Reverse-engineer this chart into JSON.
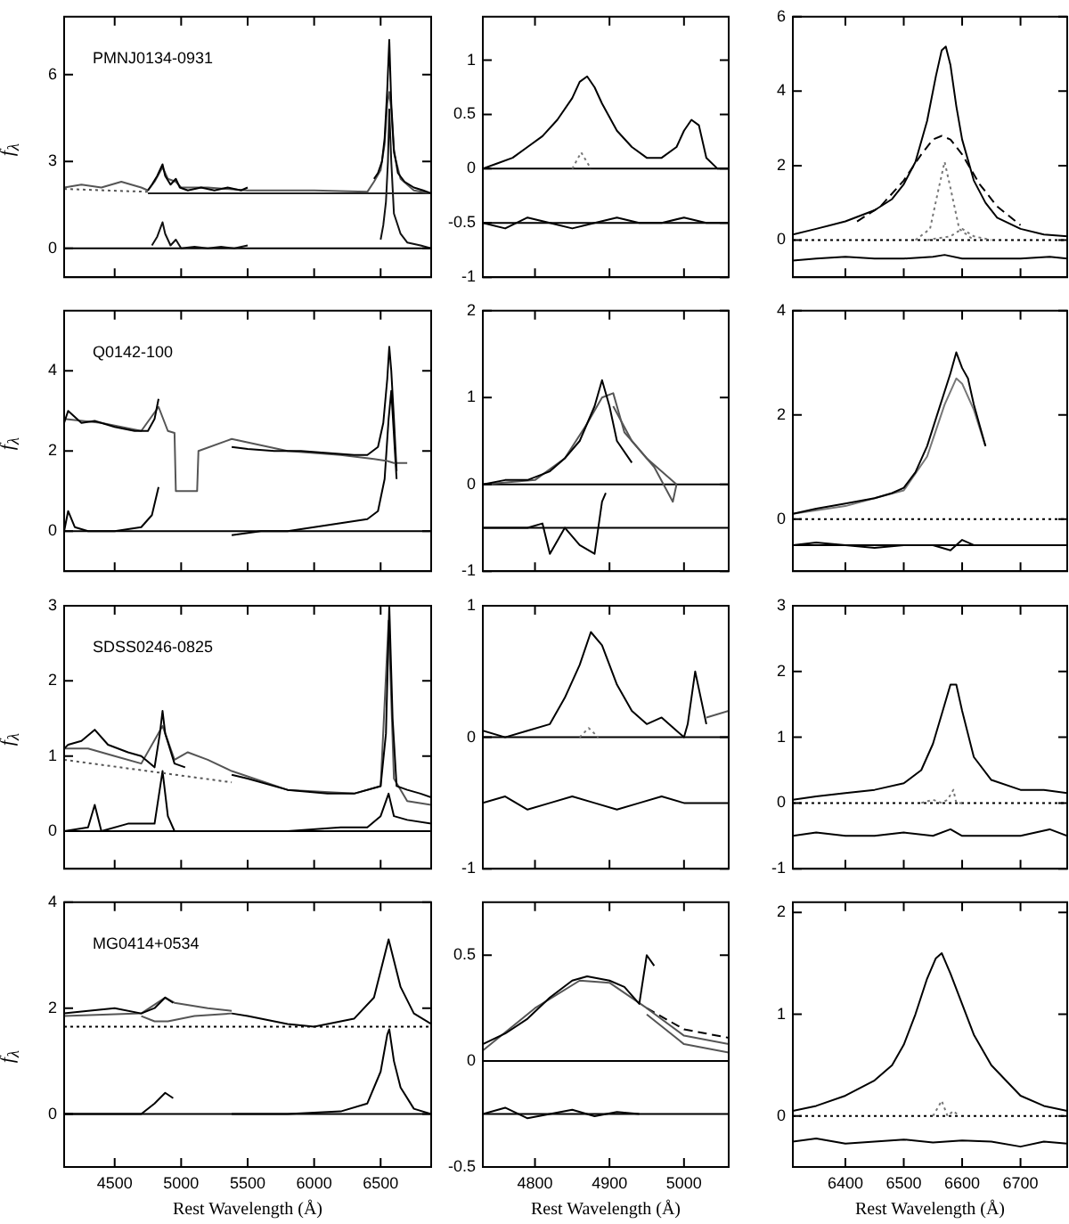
{
  "chart_data": [
    {
      "type": "line",
      "ylabel": "f$_{λ}$",
      "annotations": [
        "PMNJ0134-0931"
      ],
      "xlim": [
        4120,
        6880
      ],
      "xticks": [
        4500,
        5000,
        5500,
        6000,
        6500
      ],
      "ylim": [
        -1,
        8
      ],
      "yticks": [
        0,
        3,
        6
      ],
      "tick_labels": "y",
      "series": [
        {
          "color": "#000000",
          "x": [
            4750,
            4780,
            4820,
            4860,
            4880,
            4920,
            4960,
            4990,
            5050,
            5150,
            5250,
            5350,
            5450,
            5500,
            5900,
            6450,
            6480,
            6510,
            6530,
            6550,
            6565,
            6580,
            6600,
            6630,
            6680,
            6750,
            6820,
            6880
          ],
          "values": [
            2.0,
            2.2,
            2.5,
            2.9,
            2.5,
            2.2,
            2.4,
            2.1,
            2.0,
            2.1,
            2.0,
            2.1,
            2.0,
            2.1,
            null,
            2.4,
            2.6,
            3.0,
            3.8,
            5.5,
            7.2,
            5.0,
            3.4,
            2.6,
            2.3,
            2.1,
            2.0,
            1.9
          ]
        },
        {
          "color": "#555555",
          "x": [
            4120,
            4250,
            4400,
            4550,
            4700,
            4750,
            4800,
            4860,
            4900,
            4960,
            5000,
            5200,
            5500,
            6000,
            6400,
            6450,
            6500,
            6530,
            6550,
            6565,
            6580,
            6600,
            6650,
            6750,
            6880
          ],
          "values": [
            2.1,
            2.2,
            2.1,
            2.3,
            2.1,
            2.0,
            2.3,
            2.8,
            2.4,
            2.3,
            2.1,
            2.1,
            2.0,
            2.0,
            1.95,
            2.3,
            2.7,
            3.6,
            5.0,
            5.4,
            4.8,
            3.3,
            2.4,
            2.0,
            1.9
          ]
        },
        {
          "color": "#555555",
          "line_style": "dotted",
          "x": [
            4120,
            4750
          ],
          "values": [
            2.05,
            1.95
          ]
        },
        {
          "color": "#222222",
          "x": [
            4750,
            6880
          ],
          "values": [
            1.9,
            1.9
          ]
        },
        {
          "color": "#111111",
          "x": [
            4780,
            4820,
            4860,
            4880,
            4920,
            4960,
            5000,
            5100,
            5200,
            5300,
            5400,
            5500,
            6000,
            6500,
            6520,
            6540,
            6555,
            6565,
            6580,
            6600,
            6650,
            6700,
            6800,
            6880
          ],
          "values": [
            0.1,
            0.4,
            0.9,
            0.5,
            0.1,
            0.3,
            0,
            0.05,
            0,
            0.05,
            0,
            0.1,
            null,
            0.3,
            0.8,
            1.6,
            3,
            4.8,
            3,
            1.2,
            0.5,
            0.2,
            0.1,
            0
          ]
        }
      ],
      "ref_lines": [
        {
          "axis": "y",
          "value": 0
        }
      ]
    },
    {
      "type": "line",
      "xlim": [
        4730,
        5060
      ],
      "xticks": [
        4800,
        4900,
        5000
      ],
      "ylim": [
        -1,
        1.4
      ],
      "yticks": [
        -1,
        -0.5,
        0,
        0.5,
        1
      ],
      "tick_labels": "y",
      "series": [
        {
          "color": "#000000",
          "x": [
            4730,
            4750,
            4770,
            4790,
            4810,
            4830,
            4850,
            4860,
            4870,
            4880,
            4890,
            4910,
            4930,
            4950,
            4970,
            4990,
            5000,
            5010,
            5020,
            5030,
            5045,
            5060
          ],
          "values": [
            0,
            0.05,
            0.1,
            0.2,
            0.3,
            0.45,
            0.65,
            0.8,
            0.85,
            0.75,
            0.6,
            0.35,
            0.2,
            0.1,
            0.1,
            0.2,
            0.35,
            0.45,
            0.4,
            0.1,
            0,
            0
          ]
        },
        {
          "color": "#777777",
          "line_style": "dotted",
          "x": [
            4850,
            4862,
            4875
          ],
          "values": [
            0,
            0.15,
            0
          ]
        },
        {
          "color": "#000000",
          "x": [
            4730,
            4760,
            4790,
            4820,
            4850,
            4880,
            4910,
            4940,
            4970,
            5000,
            5030,
            5060
          ],
          "values": [
            -0.5,
            -0.55,
            -0.45,
            -0.5,
            -0.55,
            -0.5,
            -0.45,
            -0.5,
            -0.5,
            -0.45,
            -0.5,
            -0.5
          ]
        }
      ],
      "ref_lines": [
        {
          "axis": "y",
          "value": 0
        },
        {
          "axis": "y",
          "value": -0.5
        }
      ]
    },
    {
      "type": "line",
      "xlim": [
        6310,
        6780
      ],
      "xticks": [
        6400,
        6500,
        6600,
        6700
      ],
      "ylim": [
        -1,
        6
      ],
      "yticks": [
        0,
        2,
        4,
        6
      ],
      "tick_labels": "y",
      "series": [
        {
          "color": "#000000",
          "x": [
            6310,
            6350,
            6400,
            6450,
            6480,
            6500,
            6520,
            6540,
            6555,
            6565,
            6572,
            6580,
            6590,
            6600,
            6620,
            6640,
            6660,
            6700,
            6740,
            6780
          ],
          "values": [
            0.15,
            0.3,
            0.5,
            0.8,
            1.1,
            1.5,
            2.1,
            3.2,
            4.4,
            5.1,
            5.2,
            4.7,
            3.6,
            2.7,
            1.6,
            1.0,
            0.6,
            0.3,
            0.15,
            0.1
          ]
        },
        {
          "color": "#000000",
          "line_style": "dashed",
          "x": [
            6420,
            6460,
            6500,
            6530,
            6550,
            6565,
            6580,
            6600,
            6630,
            6660,
            6700
          ],
          "values": [
            0.5,
            0.9,
            1.6,
            2.3,
            2.7,
            2.8,
            2.7,
            2.3,
            1.5,
            0.9,
            0.4
          ]
        },
        {
          "color": "#777777",
          "line_style": "dotted",
          "x": [
            6520,
            6545,
            6560,
            6570,
            6580,
            6595,
            6620
          ],
          "values": [
            0,
            0.3,
            1.4,
            2.1,
            1.4,
            0.3,
            0
          ]
        },
        {
          "color": "#777777",
          "line_style": "dotted",
          "x": [
            6540,
            6580,
            6600,
            6620,
            6650
          ],
          "values": [
            0,
            0.1,
            0.3,
            0.1,
            0
          ]
        },
        {
          "color": "#000000",
          "x": [
            6310,
            6350,
            6400,
            6450,
            6500,
            6550,
            6570,
            6600,
            6650,
            6700,
            6750,
            6780
          ],
          "values": [
            -0.55,
            -0.5,
            -0.45,
            -0.5,
            -0.5,
            -0.45,
            -0.4,
            -0.5,
            -0.5,
            -0.5,
            -0.45,
            -0.5
          ]
        }
      ],
      "ref_lines": [
        {
          "axis": "y",
          "value": 0,
          "line_style": "dotted"
        }
      ]
    },
    {
      "type": "line",
      "ylabel": "f$_{λ}$",
      "annotations": [
        "Q0142-100"
      ],
      "xlim": [
        4120,
        6880
      ],
      "xticks": [
        4500,
        5000,
        5500,
        6000,
        6500
      ],
      "ylim": [
        -1,
        5.5
      ],
      "yticks": [
        0,
        2,
        4
      ],
      "tick_labels": "y",
      "series": [
        {
          "color": "#000000",
          "x": [
            4120,
            4150,
            4250,
            4350,
            4500,
            4650,
            4750,
            4800,
            4830,
            5100,
            5380,
            5500,
            5700,
            5900,
            6100,
            6300,
            6400,
            6480,
            6520,
            6550,
            6565,
            6580,
            6600,
            6620
          ],
          "values": [
            2.7,
            3.0,
            2.7,
            2.75,
            2.6,
            2.5,
            2.5,
            2.8,
            3.3,
            null,
            2.1,
            2.05,
            2.0,
            2.0,
            1.95,
            1.9,
            1.9,
            2.1,
            2.7,
            3.8,
            4.6,
            4.0,
            2.8,
            1.5
          ]
        },
        {
          "color": "#555555",
          "x": [
            4120,
            4400,
            4700,
            4830,
            4900,
            4950,
            4960,
            5120,
            5130,
            5380,
            5800,
            6200,
            6450,
            6550,
            6600,
            6700
          ],
          "values": [
            2.8,
            2.7,
            2.5,
            3.1,
            2.5,
            2.45,
            1.0,
            1.0,
            2.0,
            2.3,
            2.0,
            1.9,
            1.8,
            1.75,
            1.7,
            1.7
          ]
        },
        {
          "color": "#000000",
          "x": [
            4120,
            4150,
            4200,
            4300,
            4500,
            4700,
            4780,
            4830,
            5100,
            5380,
            5600,
            5800,
            6000,
            6200,
            6400,
            6480,
            6530,
            6560,
            6580,
            6600,
            6620
          ],
          "values": [
            0,
            0.5,
            0.1,
            0,
            0,
            0.1,
            0.4,
            1.1,
            null,
            -0.1,
            0,
            0,
            0.1,
            0.2,
            0.3,
            0.5,
            1.3,
            2.8,
            3.5,
            2.4,
            1.3
          ]
        }
      ],
      "ref_lines": [
        {
          "axis": "y",
          "value": 0
        }
      ]
    },
    {
      "type": "line",
      "xlim": [
        4730,
        5060
      ],
      "xticks": [
        4800,
        4900,
        5000
      ],
      "ylim": [
        -1,
        2
      ],
      "yticks": [
        -1,
        0,
        1,
        2
      ],
      "tick_labels": "y",
      "series": [
        {
          "color": "#000000",
          "x": [
            4730,
            4760,
            4790,
            4820,
            4840,
            4860,
            4870,
            4880,
            4890,
            4900,
            4910,
            4930
          ],
          "values": [
            0,
            0.05,
            0.05,
            0.15,
            0.3,
            0.5,
            0.7,
            0.9,
            1.2,
            0.9,
            0.5,
            0.25
          ]
        },
        {
          "color": "#555555",
          "x": [
            4730,
            4800,
            4840,
            4870,
            4890,
            4905,
            4920,
            4950,
            4990
          ],
          "values": [
            0,
            0.05,
            0.3,
            0.7,
            1.0,
            1.05,
            0.6,
            0.3,
            0
          ]
        },
        {
          "color": "#555555",
          "x": [
            4905,
            4930,
            4960,
            4985,
            4990
          ],
          "values": [
            0.9,
            0.5,
            0.2,
            -0.2,
            0
          ]
        },
        {
          "color": "#000000",
          "x": [
            4730,
            4760,
            4790,
            4810,
            4820,
            4840,
            4860,
            4880,
            4890,
            4895
          ],
          "values": [
            -0.5,
            -0.5,
            -0.5,
            -0.45,
            -0.8,
            -0.5,
            -0.7,
            -0.8,
            -0.2,
            -0.1
          ]
        }
      ],
      "ref_lines": [
        {
          "axis": "y",
          "value": 0
        },
        {
          "axis": "y",
          "value": -0.5
        }
      ]
    },
    {
      "type": "line",
      "xlim": [
        6310,
        6780
      ],
      "xticks": [
        6400,
        6500,
        6600,
        6700
      ],
      "ylim": [
        -1,
        4
      ],
      "yticks": [
        0,
        2,
        4
      ],
      "tick_labels": "y",
      "series": [
        {
          "color": "#000000",
          "x": [
            6310,
            6350,
            6400,
            6450,
            6480,
            6500,
            6520,
            6540,
            6560,
            6580,
            6590,
            6600,
            6610,
            6620,
            6630,
            6640
          ],
          "values": [
            0.1,
            0.2,
            0.3,
            0.4,
            0.5,
            0.6,
            0.9,
            1.4,
            2.1,
            2.8,
            3.2,
            2.9,
            2.7,
            2.2,
            1.8,
            1.4
          ]
        },
        {
          "color": "#777777",
          "x": [
            6310,
            6400,
            6500,
            6540,
            6570,
            6590,
            6600,
            6620,
            6640
          ],
          "values": [
            0.1,
            0.25,
            0.55,
            1.2,
            2.2,
            2.7,
            2.6,
            2.1,
            1.4
          ]
        },
        {
          "color": "#000000",
          "x": [
            6310,
            6350,
            6400,
            6450,
            6500,
            6550,
            6580,
            6600,
            6620,
            6640
          ],
          "values": [
            -0.5,
            -0.45,
            -0.5,
            -0.55,
            -0.5,
            -0.5,
            -0.6,
            -0.4,
            -0.5,
            -0.5
          ]
        }
      ],
      "ref_lines": [
        {
          "axis": "y",
          "value": 0,
          "line_style": "dotted"
        },
        {
          "axis": "y",
          "value": -0.5
        }
      ]
    },
    {
      "type": "line",
      "ylabel": "f$_{λ}$",
      "annotations": [
        "SDSS0246-0825"
      ],
      "xlim": [
        4120,
        6880
      ],
      "xticks": [
        4500,
        5000,
        5500,
        6000,
        6500
      ],
      "ylim": [
        -0.5,
        3
      ],
      "yticks": [
        0,
        1,
        2,
        3
      ],
      "tick_labels": "y",
      "series": [
        {
          "color": "#000000",
          "x": [
            4120,
            4150,
            4250,
            4350,
            4450,
            4600,
            4700,
            4800,
            4840,
            4860,
            4880,
            4950,
            5030,
            5200,
            5380,
            5500,
            5800,
            6100,
            6300,
            6500,
            6540,
            6565,
            6590,
            6620,
            6700,
            6800,
            6880
          ],
          "values": [
            1.1,
            1.15,
            1.2,
            1.35,
            1.15,
            1.05,
            1.0,
            0.85,
            1.3,
            1.6,
            1.3,
            0.9,
            0.85,
            null,
            0.75,
            0.7,
            0.55,
            0.5,
            0.5,
            0.6,
            1.3,
            3.0,
            1.5,
            0.6,
            0.55,
            0.5,
            0.45
          ]
        },
        {
          "color": "#555555",
          "x": [
            4120,
            4300,
            4500,
            4700,
            4860,
            4950,
            5050,
            5200,
            5380,
            5800,
            6300,
            6500,
            6560,
            6600,
            6700,
            6880
          ],
          "values": [
            1.1,
            1.1,
            1.0,
            0.9,
            1.4,
            0.95,
            1.05,
            0.95,
            0.8,
            0.55,
            0.5,
            0.6,
            2.8,
            0.7,
            0.4,
            0.35
          ]
        },
        {
          "color": "#555555",
          "line_style": "dotted",
          "x": [
            4120,
            5380
          ],
          "values": [
            0.95,
            0.65
          ]
        },
        {
          "color": "#000000",
          "x": [
            4120,
            4300,
            4350,
            4400,
            4600,
            4800,
            4860,
            4900,
            4950,
            5030,
            5200,
            5380,
            5800,
            6200,
            6400,
            6500,
            6560,
            6600,
            6700,
            6880
          ],
          "values": [
            0,
            0.05,
            0.35,
            0,
            0.1,
            0.1,
            0.8,
            0.2,
            0,
            0,
            null,
            0,
            0,
            0.05,
            0.05,
            0.2,
            0.5,
            0.2,
            0.15,
            0.1
          ]
        }
      ],
      "ref_lines": [
        {
          "axis": "y",
          "value": 0
        }
      ]
    },
    {
      "type": "line",
      "xlim": [
        4730,
        5060
      ],
      "xticks": [
        4800,
        4900,
        5000
      ],
      "ylim": [
        -1,
        1
      ],
      "yticks": [
        -1,
        0,
        1
      ],
      "tick_labels": "y",
      "series": [
        {
          "color": "#000000",
          "x": [
            4730,
            4760,
            4790,
            4820,
            4840,
            4860,
            4875,
            4890,
            4910,
            4930,
            4950,
            4970,
            4990,
            5000,
            5005,
            5015,
            5030
          ],
          "values": [
            0.05,
            0,
            0.05,
            0.1,
            0.3,
            0.55,
            0.8,
            0.7,
            0.4,
            0.2,
            0.1,
            0.15,
            0.05,
            0,
            0.1,
            0.5,
            0.1
          ]
        },
        {
          "color": "#555555",
          "x": [
            5030,
            5060
          ],
          "values": [
            0.15,
            0.2
          ]
        },
        {
          "color": "#777777",
          "line_style": "dotted",
          "x": [
            4860,
            4872,
            4885
          ],
          "values": [
            0,
            0.07,
            0
          ]
        },
        {
          "color": "#000000",
          "x": [
            4730,
            4760,
            4790,
            4820,
            4850,
            4880,
            4910,
            4940,
            4970,
            5000,
            5030,
            5060
          ],
          "values": [
            -0.5,
            -0.45,
            -0.55,
            -0.5,
            -0.45,
            -0.5,
            -0.55,
            -0.5,
            -0.45,
            -0.5,
            -0.5,
            -0.5
          ]
        }
      ],
      "ref_lines": [
        {
          "axis": "y",
          "value": 0
        }
      ]
    },
    {
      "type": "line",
      "xlim": [
        6310,
        6780
      ],
      "xticks": [
        6400,
        6500,
        6600,
        6700
      ],
      "ylim": [
        -1,
        3
      ],
      "yticks": [
        -1,
        0,
        1,
        2,
        3
      ],
      "tick_labels": "y",
      "series": [
        {
          "color": "#000000",
          "x": [
            6310,
            6350,
            6400,
            6450,
            6500,
            6530,
            6550,
            6570,
            6580,
            6590,
            6600,
            6620,
            6650,
            6700,
            6740,
            6780
          ],
          "values": [
            0.05,
            0.1,
            0.15,
            0.2,
            0.3,
            0.5,
            0.9,
            1.5,
            1.8,
            1.8,
            1.4,
            0.7,
            0.35,
            0.2,
            0.2,
            0.15
          ]
        },
        {
          "color": "#777777",
          "line_style": "dotted",
          "x": [
            6530,
            6550,
            6565,
            6575,
            6585,
            6590,
            6600
          ],
          "values": [
            0,
            0.05,
            0,
            0.05,
            0.2,
            0,
            0
          ]
        },
        {
          "color": "#000000",
          "x": [
            6310,
            6350,
            6400,
            6450,
            6500,
            6550,
            6580,
            6600,
            6650,
            6700,
            6750,
            6780
          ],
          "values": [
            -0.5,
            -0.45,
            -0.5,
            -0.5,
            -0.45,
            -0.5,
            -0.4,
            -0.5,
            -0.5,
            -0.5,
            -0.4,
            -0.5
          ]
        }
      ],
      "ref_lines": [
        {
          "axis": "y",
          "value": 0,
          "line_style": "dotted"
        }
      ]
    },
    {
      "type": "line",
      "ylabel": "f$_{λ}$",
      "annotations": [
        "MG0414+0534"
      ],
      "xlabel": "Rest Wavelength (Å)",
      "xlim": [
        4120,
        6880
      ],
      "xticks": [
        4500,
        5000,
        5500,
        6000,
        6500
      ],
      "ylim": [
        -1,
        4
      ],
      "yticks": [
        0,
        2,
        4
      ],
      "series": [
        {
          "color": "#000000",
          "x": [
            4120,
            4300,
            4500,
            4700,
            4800,
            4880,
            4940,
            5200,
            5380,
            5500,
            5800,
            6000,
            6300,
            6450,
            6520,
            6560,
            6600,
            6650,
            6750,
            6880
          ],
          "values": [
            1.9,
            1.95,
            2.0,
            1.9,
            2.0,
            2.2,
            2.1,
            null,
            1.9,
            1.85,
            1.7,
            1.65,
            1.8,
            2.2,
            2.9,
            3.3,
            2.9,
            2.4,
            1.9,
            1.7
          ]
        },
        {
          "color": "#555555",
          "x": [
            4120,
            4700,
            4880,
            4950,
            5200,
            5380
          ],
          "values": [
            1.85,
            1.9,
            2.2,
            2.1,
            2.0,
            1.95
          ]
        },
        {
          "color": "#555555",
          "x": [
            4700,
            4800,
            4900,
            5100,
            5380
          ],
          "values": [
            1.85,
            1.75,
            1.75,
            1.85,
            1.9
          ]
        },
        {
          "color": "#000000",
          "x": [
            4120,
            4400,
            4700,
            4800,
            4880,
            4940,
            5200,
            5380,
            5800,
            6200,
            6400,
            6500,
            6550,
            6565,
            6600,
            6650,
            6750,
            6880
          ],
          "values": [
            0,
            0,
            0,
            0.2,
            0.4,
            0.3,
            null,
            0,
            0,
            0.05,
            0.2,
            0.8,
            1.5,
            1.6,
            1.0,
            0.5,
            0.1,
            0
          ]
        }
      ],
      "ref_lines": [
        {
          "axis": "y",
          "value": 0
        },
        {
          "axis": "y",
          "value": 1.65,
          "line_style": "dotted"
        }
      ]
    },
    {
      "type": "line",
      "xlabel": "Rest Wavelength (Å)",
      "xlim": [
        4730,
        5060
      ],
      "xticks": [
        4800,
        4900,
        5000
      ],
      "ylim": [
        -0.5,
        0.75
      ],
      "yticks": [
        -0.5,
        0,
        0.5
      ],
      "series": [
        {
          "color": "#000000",
          "x": [
            4730,
            4760,
            4790,
            4820,
            4850,
            4870,
            4900,
            4920,
            4940,
            4950,
            4960
          ],
          "values": [
            0.08,
            0.13,
            0.2,
            0.3,
            0.38,
            0.4,
            0.38,
            0.35,
            0.27,
            0.5,
            0.45
          ]
        },
        {
          "color": "#555555",
          "x": [
            4730,
            4800,
            4860,
            4900,
            4950,
            5000,
            5060
          ],
          "values": [
            0.05,
            0.25,
            0.38,
            0.37,
            0.25,
            0.12,
            0.08
          ]
        },
        {
          "color": "#000000",
          "line_style": "dashed",
          "x": [
            4950,
            5000,
            5060
          ],
          "values": [
            0.25,
            0.15,
            0.11
          ]
        },
        {
          "color": "#555555",
          "x": [
            4950,
            5000,
            5060
          ],
          "values": [
            0.22,
            0.08,
            0.04
          ]
        },
        {
          "color": "#000000",
          "x": [
            4730,
            4760,
            4790,
            4820,
            4850,
            4880,
            4910,
            4940
          ],
          "values": [
            -0.25,
            -0.22,
            -0.27,
            -0.25,
            -0.23,
            -0.26,
            -0.24,
            -0.25
          ]
        }
      ],
      "ref_lines": [
        {
          "axis": "y",
          "value": 0
        },
        {
          "axis": "y",
          "value": -0.25
        }
      ]
    },
    {
      "type": "line",
      "xlabel": "Rest Wavelength (Å)",
      "xlim": [
        6310,
        6780
      ],
      "xticks": [
        6400,
        6500,
        6600,
        6700
      ],
      "ylim": [
        -0.5,
        2.1
      ],
      "yticks": [
        0,
        1,
        2
      ],
      "series": [
        {
          "color": "#000000",
          "x": [
            6310,
            6350,
            6400,
            6450,
            6480,
            6500,
            6520,
            6540,
            6555,
            6565,
            6580,
            6600,
            6620,
            6650,
            6700,
            6740,
            6780
          ],
          "values": [
            0.05,
            0.1,
            0.2,
            0.35,
            0.5,
            0.7,
            1.0,
            1.35,
            1.55,
            1.6,
            1.4,
            1.1,
            0.8,
            0.5,
            0.2,
            0.1,
            0.05
          ]
        },
        {
          "color": "#777777",
          "line_style": "dotted",
          "x": [
            6550,
            6565,
            6575,
            6585,
            6595
          ],
          "values": [
            0,
            0.15,
            0,
            0.05,
            0
          ]
        },
        {
          "color": "#000000",
          "x": [
            6310,
            6350,
            6400,
            6450,
            6500,
            6550,
            6600,
            6650,
            6700,
            6740,
            6780
          ],
          "values": [
            -0.25,
            -0.22,
            -0.27,
            -0.25,
            -0.23,
            -0.26,
            -0.24,
            -0.25,
            -0.3,
            -0.25,
            -0.27
          ]
        }
      ],
      "ref_lines": [
        {
          "axis": "y",
          "value": 0,
          "line_style": "dotted"
        }
      ]
    }
  ]
}
